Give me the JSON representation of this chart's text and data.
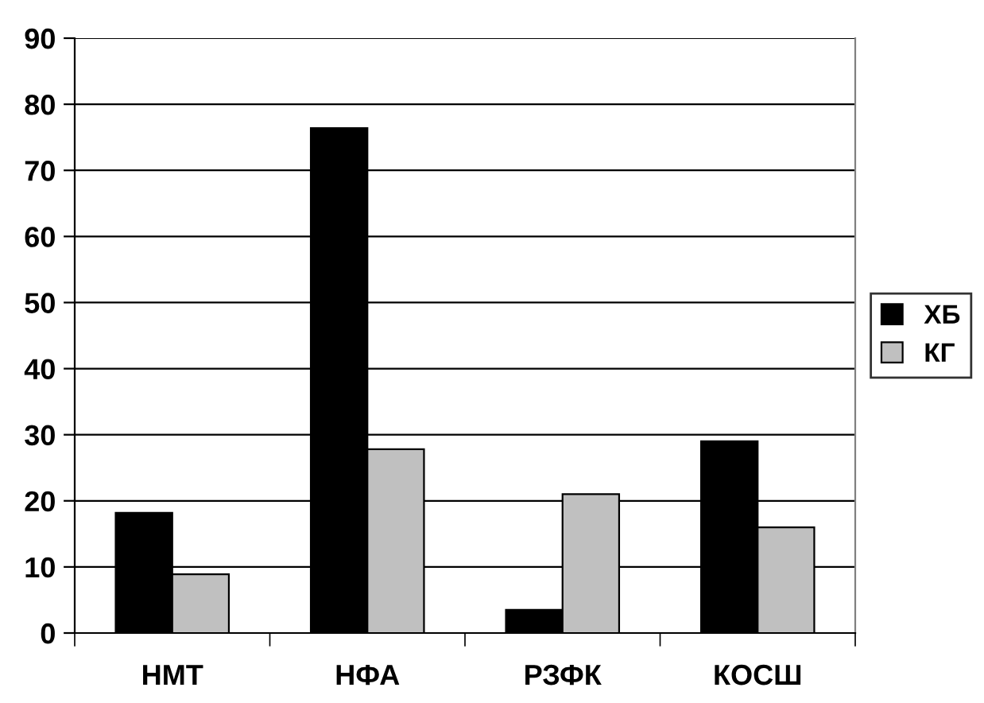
{
  "chart_data": {
    "type": "bar",
    "categories": [
      "НМТ",
      "НФА",
      "РЗФК",
      "КОСШ"
    ],
    "series": [
      {
        "name": "ХБ",
        "color": "#000000",
        "values": [
          18.2,
          76.4,
          3.5,
          29
        ]
      },
      {
        "name": "КГ",
        "color": "#c0c0c0",
        "values": [
          8.9,
          27.8,
          21,
          16
        ]
      }
    ],
    "ylim": [
      0,
      90
    ],
    "yticks": [
      0,
      10,
      20,
      30,
      40,
      50,
      60,
      70,
      80,
      90
    ],
    "grid": "y",
    "legend": "right"
  }
}
